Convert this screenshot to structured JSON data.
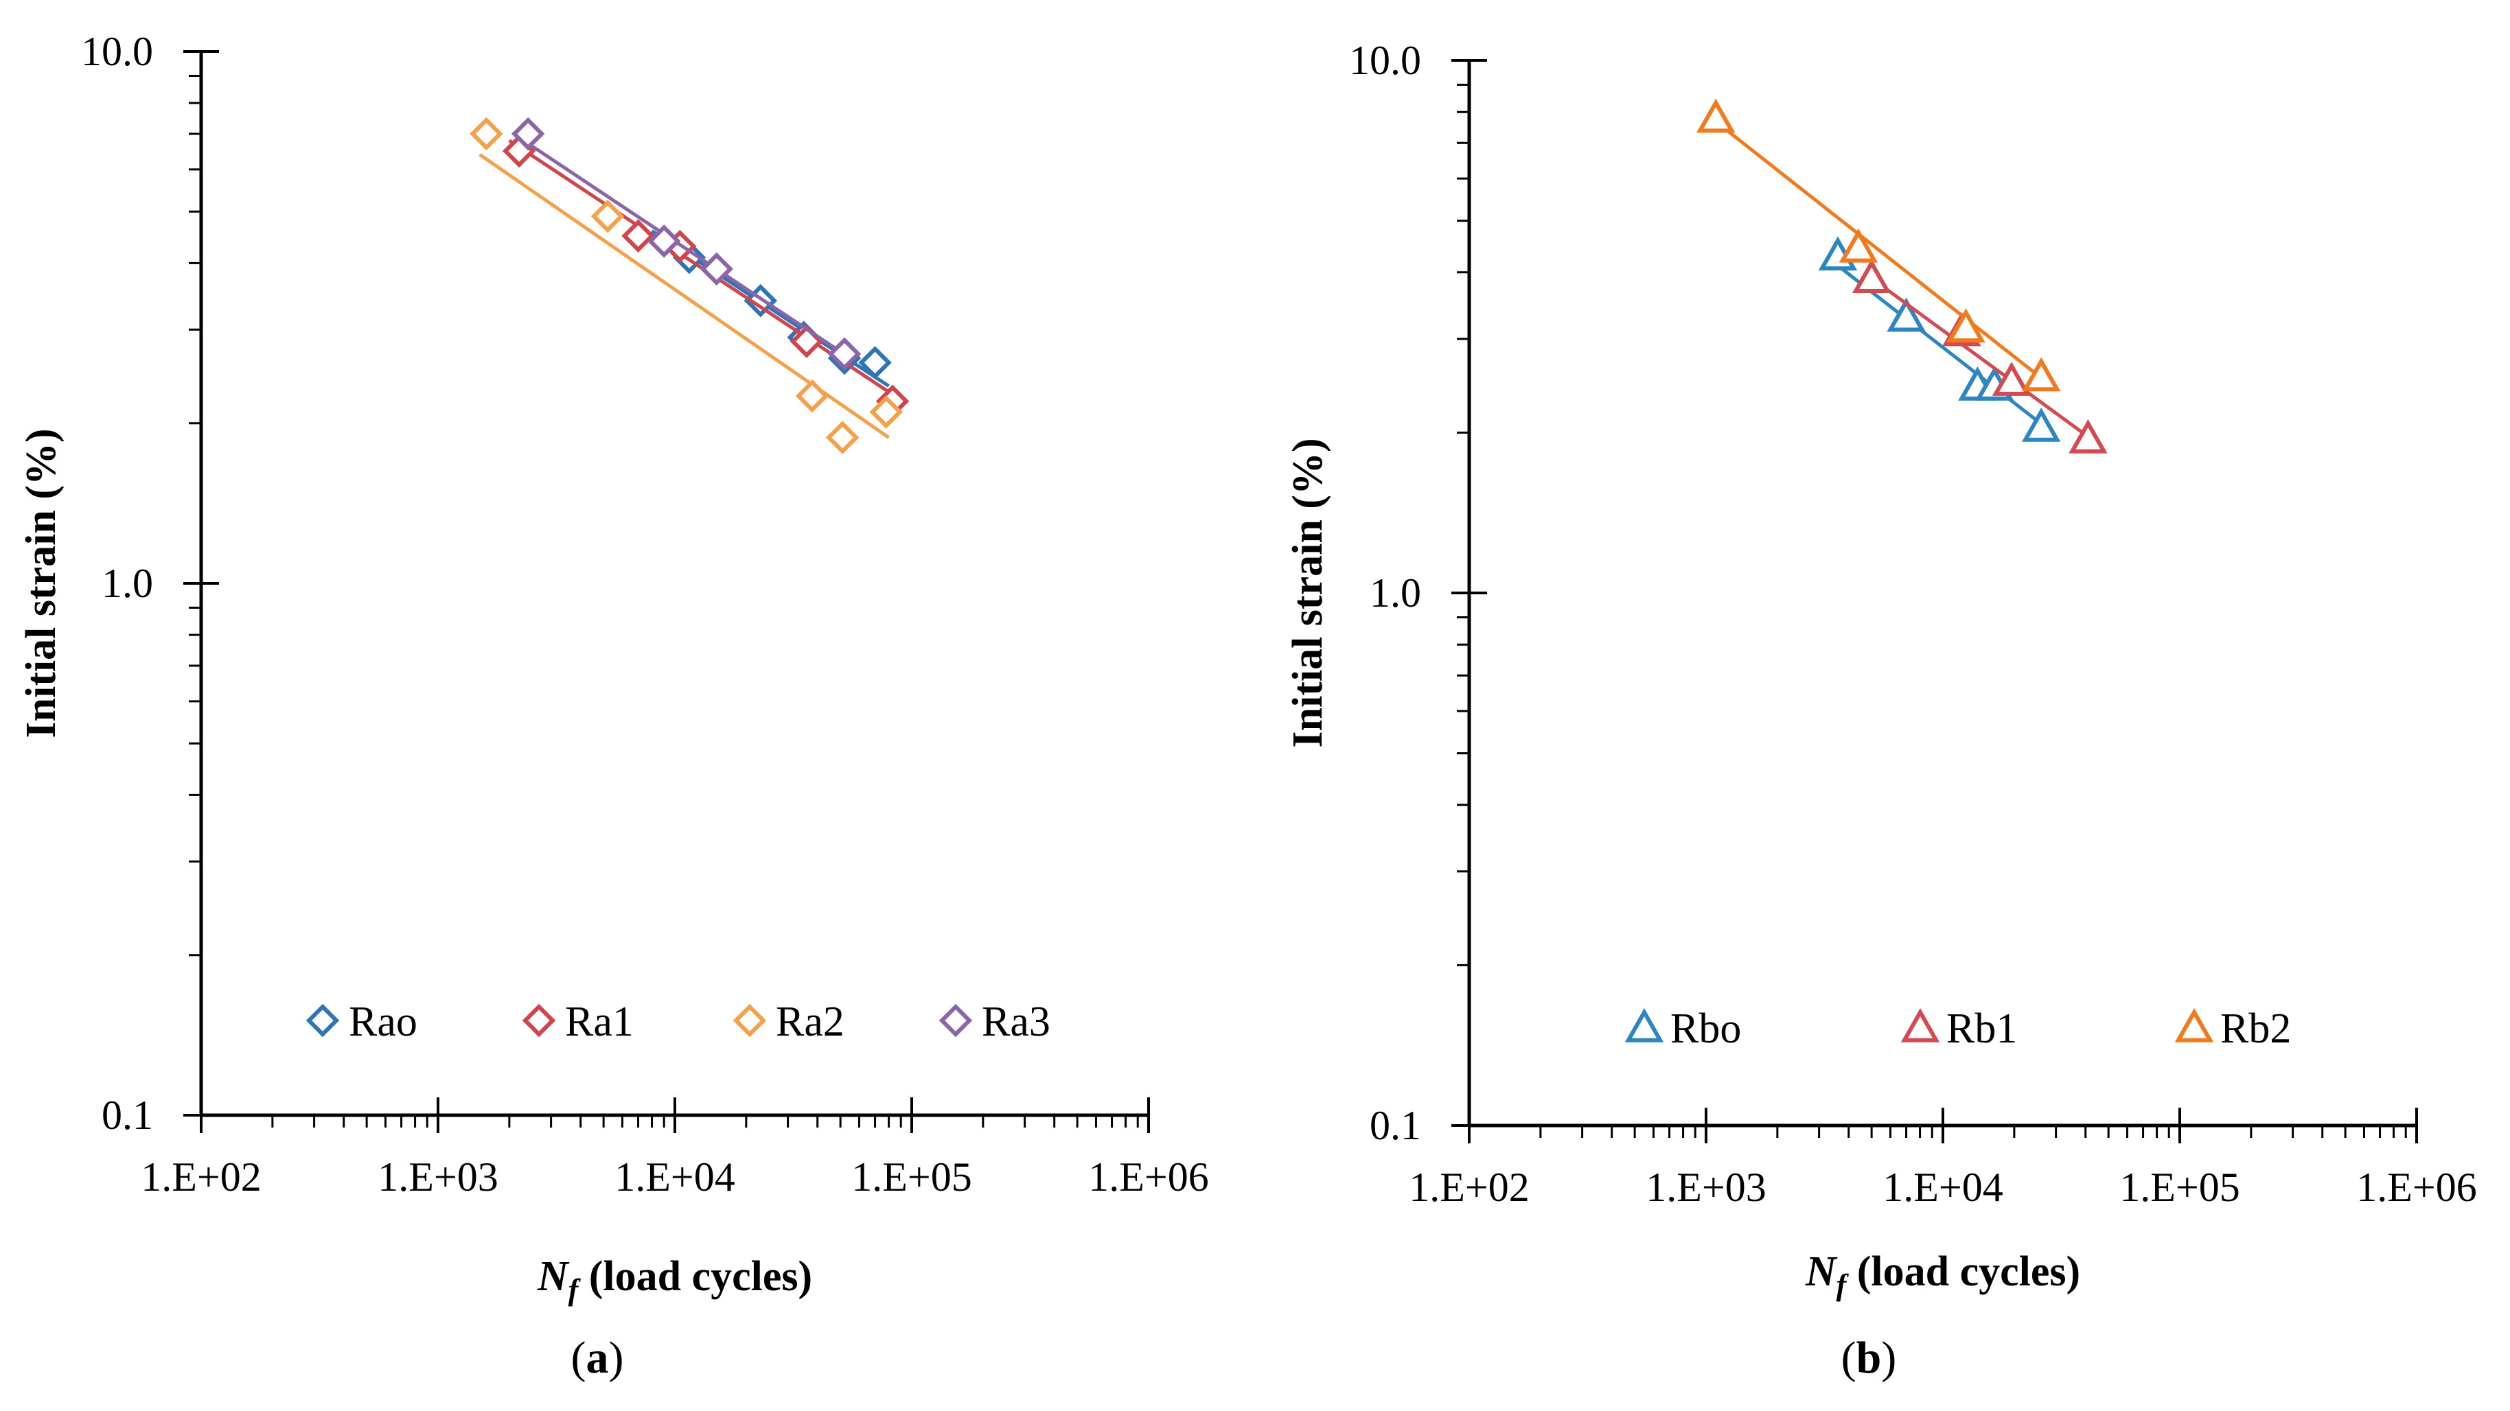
{
  "figure": {
    "charts": [
      {
        "id": "a",
        "panel_label_open": "(",
        "panel_label_letter": "a",
        "panel_label_close": ")"
      },
      {
        "id": "b",
        "panel_label_open": "(",
        "panel_label_letter": "b",
        "panel_label_close": ")"
      }
    ]
  },
  "chart_data": [
    {
      "type": "scatter",
      "title": "",
      "xlabel": "N_f (load cycles)",
      "xlabel_main": "N",
      "xlabel_sub": "f",
      "xlabel_rest": " (load cycles)",
      "ylabel": "Initial strain (%)",
      "xscale": "log",
      "yscale": "log",
      "xlim": [
        100,
        1000000
      ],
      "ylim": [
        0.1,
        10
      ],
      "x_tick_labels": [
        "1.E+02",
        "1.E+03",
        "1.E+04",
        "1.E+05",
        "1.E+06"
      ],
      "y_tick_labels": [
        "0.1",
        "1.0",
        "10.0"
      ],
      "marker": "diamond",
      "legend_position": "bottom",
      "series": [
        {
          "name": "Rao",
          "color": "#2E75B6",
          "x": [
            11500,
            23000,
            35000,
            52000,
            70000
          ],
          "y": [
            4.1,
            3.4,
            2.9,
            2.65,
            2.6
          ],
          "trend": {
            "x": [
              8000,
              80000
            ],
            "y": [
              4.6,
              2.35
            ]
          }
        },
        {
          "name": "Ra1",
          "color": "#D0454C",
          "x": [
            2200,
            7000,
            10500,
            36000,
            83000
          ],
          "y": [
            6.5,
            4.5,
            4.3,
            2.85,
            2.2
          ],
          "trend": {
            "x": [
              2000,
              85000
            ],
            "y": [
              6.8,
              2.25
            ]
          }
        },
        {
          "name": "Ra2",
          "color": "#F5A04A",
          "x": [
            1600,
            5200,
            38000,
            51000,
            78000
          ],
          "y": [
            7.0,
            4.9,
            2.25,
            1.88,
            2.1
          ],
          "trend": {
            "x": [
              1500,
              80000
            ],
            "y": [
              6.4,
              1.88
            ]
          }
        },
        {
          "name": "Ra3",
          "color": "#8C64A8",
          "x": [
            2400,
            9000,
            15000,
            52000
          ],
          "y": [
            7.0,
            4.4,
            3.9,
            2.7
          ],
          "trend": {
            "x": [
              2300,
              53000
            ],
            "y": [
              6.8,
              2.68
            ]
          }
        }
      ]
    },
    {
      "type": "scatter",
      "title": "",
      "xlabel": "N_f (load cycles)",
      "xlabel_main": "N",
      "xlabel_sub": "f",
      "xlabel_rest": " (load cycles)",
      "ylabel": "Initial strain (%)",
      "xscale": "log",
      "yscale": "log",
      "xlim": [
        100,
        1000000
      ],
      "ylim": [
        0.1,
        10
      ],
      "x_tick_labels": [
        "1.E+02",
        "1.E+03",
        "1.E+04",
        "1.E+05",
        "1.E+06"
      ],
      "y_tick_labels": [
        "0.1",
        "1.0",
        "10.0"
      ],
      "marker": "triangle",
      "legend_position": "bottom",
      "series": [
        {
          "name": "Rbo",
          "color": "#2E86C1",
          "x": [
            3600,
            7000,
            14000,
            16500,
            26000
          ],
          "y": [
            4.3,
            3.3,
            2.45,
            2.45,
            2.05
          ],
          "trend": {
            "x": [
              3400,
              27000
            ],
            "y": [
              4.2,
              2.05
            ]
          }
        },
        {
          "name": "Rb1",
          "color": "#D24A52",
          "x": [
            5000,
            12000,
            19500,
            41000
          ],
          "y": [
            3.9,
            3.1,
            2.5,
            1.95
          ],
          "trend": {
            "x": [
              4800,
              42000
            ],
            "y": [
              3.95,
              1.95
            ]
          }
        },
        {
          "name": "Rb2",
          "color": "#F07A1C",
          "x": [
            1100,
            4400,
            12500,
            26000
          ],
          "y": [
            7.8,
            4.45,
            3.15,
            2.55
          ],
          "trend": {
            "x": [
              1050,
              27000
            ],
            "y": [
              7.8,
              2.5
            ]
          }
        }
      ]
    }
  ]
}
